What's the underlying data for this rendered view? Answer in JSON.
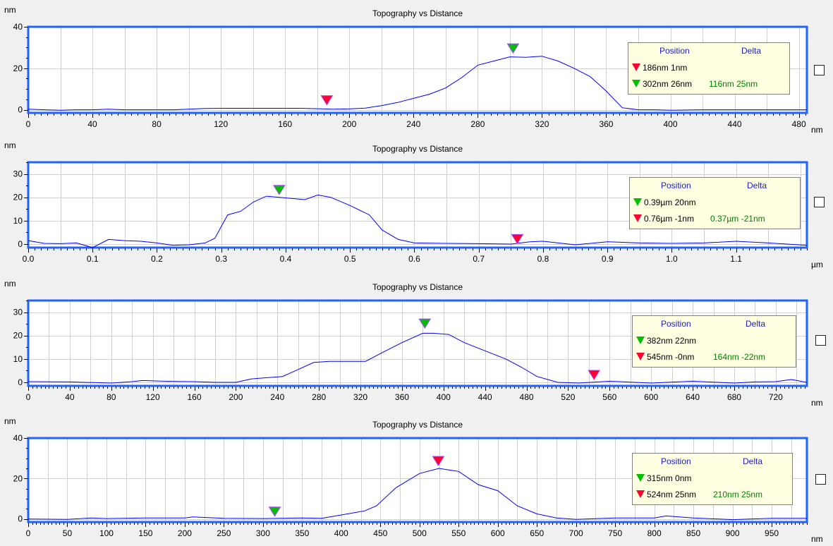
{
  "chart_data": [
    {
      "type": "line",
      "title": "Topography  vs  Distance",
      "ylabel": "nm",
      "xlabel": "nm",
      "xlim": [
        0,
        485
      ],
      "ylim": [
        -1.5,
        40
      ],
      "x_ticks": [
        0,
        40,
        80,
        120,
        160,
        200,
        240,
        280,
        320,
        360,
        400,
        440,
        480
      ],
      "x_tick_labels": [
        "0",
        "40",
        "80",
        "120",
        "160",
        "200",
        "240",
        "280",
        "320",
        "360",
        "400",
        "440",
        "480"
      ],
      "x_grid_step": 20,
      "y_ticks": [
        0,
        20,
        40
      ],
      "y_tick_labels": [
        "0",
        "20",
        "40"
      ],
      "y_minor_step": 5,
      "series": [
        {
          "color": "#0000ff",
          "x": [
            0,
            10,
            20,
            30,
            40,
            50,
            60,
            70,
            80,
            90,
            100,
            110,
            120,
            130,
            140,
            150,
            160,
            170,
            180,
            190,
            200,
            210,
            220,
            230,
            240,
            250,
            260,
            270,
            280,
            290,
            300,
            310,
            320,
            330,
            340,
            350,
            360,
            370,
            380,
            390,
            400,
            420,
            440,
            460,
            480,
            485
          ],
          "y": [
            0.3,
            0,
            -0.2,
            0,
            0,
            0.3,
            0,
            0,
            0,
            0,
            0.3,
            0.6,
            0.7,
            0.7,
            0.7,
            0.7,
            0.7,
            0.7,
            0.5,
            0.3,
            0.4,
            0.8,
            2.0,
            3.5,
            5.5,
            7.5,
            10.5,
            15.5,
            21.5,
            23.5,
            25.5,
            25.3,
            25.8,
            23.5,
            20.0,
            16.0,
            9.0,
            1.0,
            0,
            0,
            -0.2,
            0,
            0,
            0,
            0,
            0
          ]
        }
      ],
      "markers": [
        {
          "x": 186,
          "y": 1,
          "color": "#ff0030"
        },
        {
          "x": 302,
          "y": 26,
          "color": "#00c000"
        }
      ],
      "legend": {
        "header_position": "Position",
        "header_delta": "Delta",
        "rows": [
          {
            "color": "#ff0030",
            "position": "186nm   1nm",
            "delta": ""
          },
          {
            "color": "#00c000",
            "position": "302nm 26nm",
            "delta": "116nm 25nm"
          }
        ]
      }
    },
    {
      "type": "line",
      "title": "Topography  vs  Distance",
      "ylabel": "nm",
      "xlabel": "µm",
      "xlim": [
        0,
        1.21
      ],
      "ylim": [
        -1.5,
        35
      ],
      "x_ticks": [
        0,
        0.1,
        0.2,
        0.3,
        0.4,
        0.5,
        0.6,
        0.7,
        0.8,
        0.9,
        1.0,
        1.1
      ],
      "x_tick_labels": [
        "0.0",
        "0.1",
        "0.2",
        "0.3",
        "0.4",
        "0.5",
        "0.6",
        "0.7",
        "0.8",
        "0.9",
        "1.0",
        "1.1"
      ],
      "x_grid_step": 0.05,
      "y_ticks": [
        0,
        10,
        20,
        30
      ],
      "y_tick_labels": [
        "0",
        "10",
        "20",
        "30"
      ],
      "y_minor_step": 5,
      "series": [
        {
          "color": "#0000ff",
          "x": [
            0,
            0.025,
            0.05,
            0.075,
            0.1,
            0.125,
            0.15,
            0.175,
            0.2,
            0.225,
            0.25,
            0.275,
            0.29,
            0.31,
            0.33,
            0.35,
            0.37,
            0.39,
            0.41,
            0.43,
            0.45,
            0.47,
            0.5,
            0.53,
            0.55,
            0.575,
            0.6,
            0.65,
            0.7,
            0.75,
            0.78,
            0.8,
            0.85,
            0.9,
            0.95,
            1.0,
            1.05,
            1.1,
            1.15,
            1.21
          ],
          "y": [
            1.5,
            0.3,
            0.2,
            0.5,
            -1.5,
            2.0,
            1.5,
            1.2,
            0.5,
            -0.5,
            -0.3,
            0.5,
            2.5,
            12.5,
            14.0,
            18.0,
            20.5,
            20.0,
            19.5,
            19.0,
            21.0,
            20.0,
            16.5,
            12.5,
            6.0,
            2.0,
            0.5,
            0.3,
            0.2,
            0,
            1.0,
            1.2,
            -0.3,
            1.0,
            0.5,
            0.3,
            0.5,
            1.2,
            0.5,
            -0.5
          ]
        }
      ],
      "markers": [
        {
          "x": 0.39,
          "y": 20,
          "color": "#00c000"
        },
        {
          "x": 0.76,
          "y": -1,
          "color": "#ff0030"
        }
      ],
      "legend": {
        "header_position": "Position",
        "header_delta": "Delta",
        "rows": [
          {
            "color": "#00c000",
            "position": "0.39µm 20nm",
            "delta": ""
          },
          {
            "color": "#ff0030",
            "position": "0.76µm  -1nm",
            "delta": "0.37µm -21nm"
          }
        ]
      }
    },
    {
      "type": "line",
      "title": "Topography  vs  Distance",
      "ylabel": "nm",
      "xlabel": "nm",
      "xlim": [
        0,
        750
      ],
      "ylim": [
        -1.5,
        35
      ],
      "x_ticks": [
        0,
        40,
        80,
        120,
        160,
        200,
        240,
        280,
        320,
        360,
        400,
        440,
        480,
        520,
        560,
        600,
        640,
        680,
        720
      ],
      "x_tick_labels": [
        "0",
        "40",
        "80",
        "120",
        "160",
        "200",
        "240",
        "280",
        "320",
        "360",
        "400",
        "440",
        "480",
        "520",
        "560",
        "600",
        "640",
        "680",
        "720"
      ],
      "x_grid_step": 20,
      "y_ticks": [
        0,
        10,
        20,
        30
      ],
      "y_tick_labels": [
        "0",
        "10",
        "20",
        "30"
      ],
      "y_minor_step": 5,
      "series": [
        {
          "color": "#0000ff",
          "x": [
            0,
            40,
            80,
            100,
            110,
            130,
            160,
            180,
            200,
            215,
            230,
            245,
            260,
            275,
            290,
            310,
            325,
            340,
            360,
            380,
            390,
            405,
            420,
            440,
            460,
            475,
            490,
            510,
            530,
            560,
            600,
            640,
            680,
            700,
            720,
            735,
            750
          ],
          "y": [
            0.3,
            0.2,
            -0.3,
            0.3,
            0.8,
            0.5,
            0.3,
            0,
            0,
            1.5,
            2.0,
            2.5,
            5.5,
            8.5,
            9.0,
            9.0,
            9.0,
            12.5,
            17.0,
            21.0,
            21.0,
            20.5,
            17.0,
            13.5,
            10.0,
            6.5,
            2.5,
            0,
            -0.3,
            0.5,
            -0.3,
            0.5,
            -0.3,
            0.2,
            0.3,
            1.2,
            0
          ]
        }
      ],
      "markers": [
        {
          "x": 382,
          "y": 22,
          "color": "#00c000"
        },
        {
          "x": 545,
          "y": 0,
          "color": "#ff0030"
        }
      ],
      "legend": {
        "header_position": "Position",
        "header_delta": "Delta",
        "rows": [
          {
            "color": "#00c000",
            "position": "382nm 22nm",
            "delta": ""
          },
          {
            "color": "#ff0030",
            "position": "545nm  -0nm",
            "delta": "164nm -22nm"
          }
        ]
      }
    },
    {
      "type": "line",
      "title": "Topography  vs  Distance",
      "ylabel": "nm",
      "xlabel": "nm",
      "xlim": [
        0,
        995
      ],
      "ylim": [
        -1.5,
        40
      ],
      "x_ticks": [
        0,
        50,
        100,
        150,
        200,
        250,
        300,
        350,
        400,
        450,
        500,
        550,
        600,
        650,
        700,
        750,
        800,
        850,
        900,
        950
      ],
      "x_tick_labels": [
        "0",
        "50",
        "100",
        "150",
        "200",
        "250",
        "300",
        "350",
        "400",
        "450",
        "500",
        "550",
        "600",
        "650",
        "700",
        "750",
        "800",
        "850",
        "900",
        "950"
      ],
      "x_grid_step": 25,
      "y_ticks": [
        0,
        20,
        40
      ],
      "y_tick_labels": [
        "0",
        "20",
        "40"
      ],
      "y_minor_step": 5,
      "series": [
        {
          "color": "#0000ff",
          "x": [
            0,
            50,
            80,
            100,
            150,
            200,
            210,
            250,
            300,
            350,
            375,
            400,
            430,
            445,
            470,
            500,
            525,
            550,
            575,
            600,
            625,
            650,
            675,
            700,
            750,
            800,
            815,
            850,
            900,
            950,
            995
          ],
          "y": [
            0,
            -0.2,
            0.5,
            0.2,
            0.5,
            0.5,
            1.0,
            0.3,
            0.2,
            0.5,
            0.3,
            2.0,
            4.0,
            6.5,
            15.5,
            22.5,
            25.0,
            23.5,
            17.0,
            14.0,
            6.5,
            2.5,
            0.5,
            -0.2,
            0.5,
            0.5,
            1.5,
            0.5,
            -0.3,
            0.3,
            0.3
          ]
        }
      ],
      "markers": [
        {
          "x": 315,
          "y": 0,
          "color": "#00c000"
        },
        {
          "x": 524,
          "y": 25,
          "color": "#ff0030"
        }
      ],
      "legend": {
        "header_position": "Position",
        "header_delta": "Delta",
        "rows": [
          {
            "color": "#00c000",
            "position": "315nm   0nm",
            "delta": ""
          },
          {
            "color": "#ff0030",
            "position": "524nm 25nm",
            "delta": "210nm 25nm"
          }
        ]
      }
    }
  ]
}
